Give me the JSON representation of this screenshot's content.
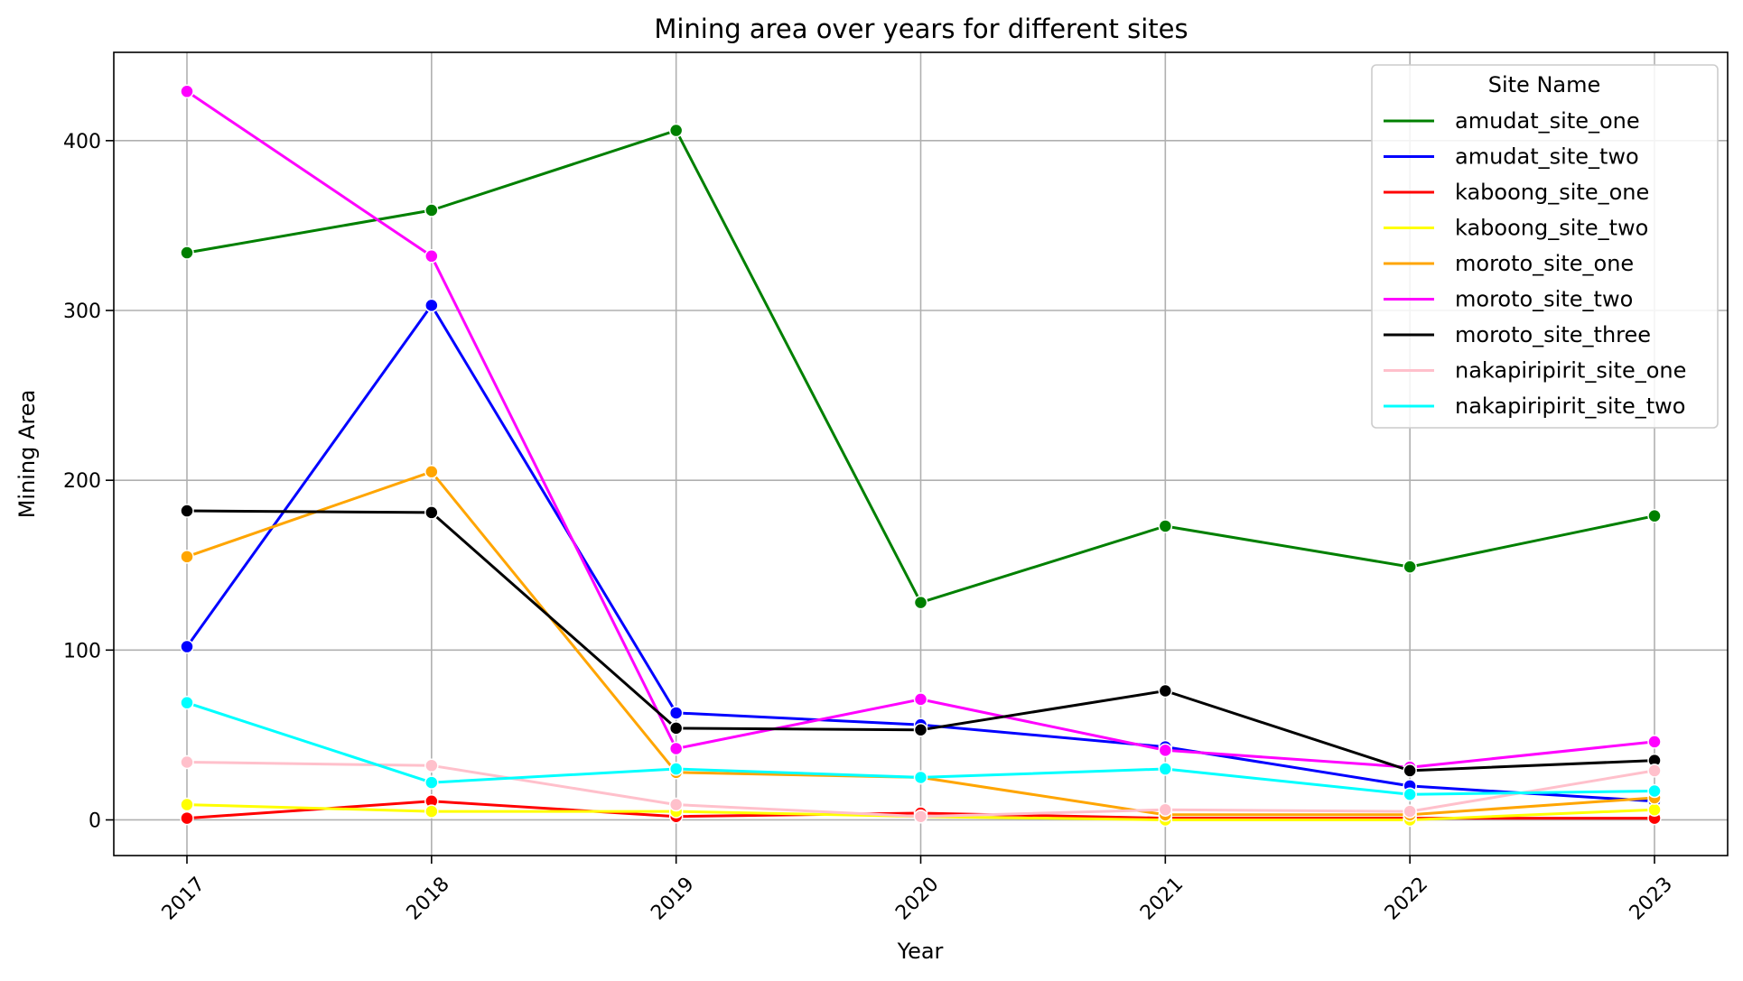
{
  "chart_data": {
    "type": "line",
    "title": "Mining area over years for different sites",
    "xlabel": "Year",
    "ylabel": "Mining Area",
    "x": [
      "2017",
      "2018",
      "2019",
      "2020",
      "2021",
      "2022",
      "2023"
    ],
    "ylim": [
      -21,
      452
    ],
    "yticks": [
      0,
      100,
      200,
      300,
      400
    ],
    "grid": true,
    "legend": {
      "title": "Site Name",
      "placement": "top-right"
    },
    "series": [
      {
        "name": "amudat_site_one",
        "color": "#008000",
        "values": [
          334,
          359,
          406,
          128,
          173,
          149,
          179
        ]
      },
      {
        "name": "amudat_site_two",
        "color": "#0000ff",
        "values": [
          102,
          303,
          63,
          56,
          43,
          20,
          11
        ]
      },
      {
        "name": "kaboong_site_one",
        "color": "#ff0000",
        "values": [
          1,
          11,
          2,
          4,
          1,
          1,
          1
        ]
      },
      {
        "name": "kaboong_site_two",
        "color": "#ffff00",
        "values": [
          9,
          5,
          5,
          2,
          0,
          0,
          6
        ]
      },
      {
        "name": "moroto_site_one",
        "color": "#ffa500",
        "values": [
          155,
          205,
          28,
          25,
          3,
          3,
          13
        ]
      },
      {
        "name": "moroto_site_two",
        "color": "#ff00ff",
        "values": [
          429,
          332,
          42,
          71,
          41,
          31,
          46
        ]
      },
      {
        "name": "moroto_site_three",
        "color": "#000000",
        "values": [
          182,
          181,
          54,
          53,
          76,
          29,
          35
        ]
      },
      {
        "name": "nakapiripirit_site_one",
        "color": "#ffc0cb",
        "values": [
          34,
          32,
          9,
          2,
          6,
          5,
          29
        ]
      },
      {
        "name": "nakapiripirit_site_two",
        "color": "#00ffff",
        "values": [
          69,
          22,
          30,
          25,
          30,
          15,
          17
        ]
      }
    ]
  }
}
